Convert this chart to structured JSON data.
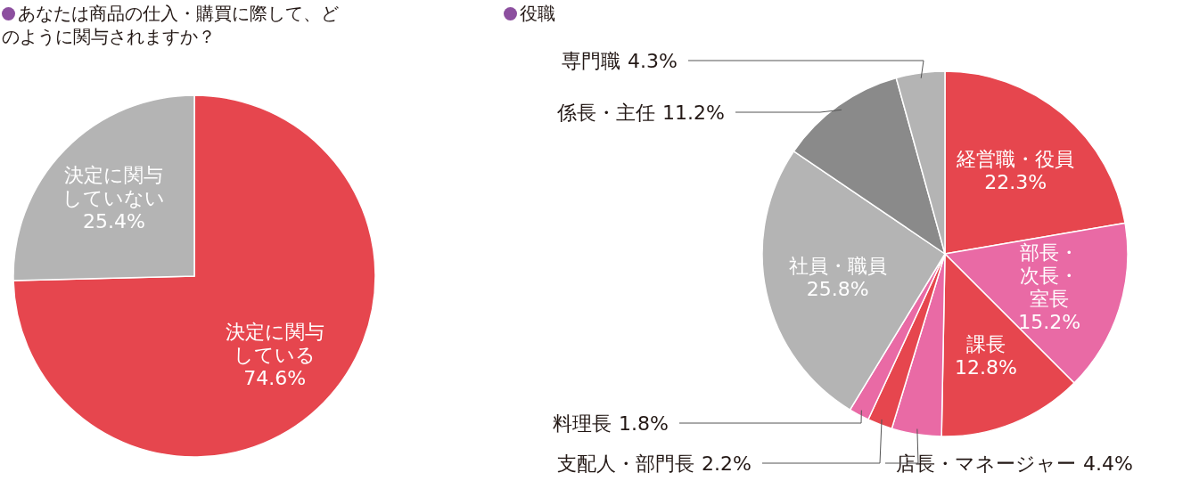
{
  "chart_data": [
    {
      "type": "pie",
      "title": "あなたは商品の仕入・購買に際して、どのように関与されますか？",
      "categories": [
        "決定に関与している",
        "決定に関与していない"
      ],
      "values": [
        74.6,
        25.4
      ],
      "colors": [
        "#e6464e",
        "#b4b4b4"
      ],
      "value_labels": [
        "74.6%",
        "25.4%"
      ]
    },
    {
      "type": "pie",
      "title": "役職",
      "categories": [
        "経営職・役員",
        "部長・次長・室長",
        "課長",
        "店長・マネージャー",
        "支配人・部門長",
        "料理長",
        "社員・職員",
        "係長・主任",
        "専門職"
      ],
      "values": [
        22.3,
        15.2,
        12.8,
        4.4,
        2.2,
        1.8,
        25.8,
        11.2,
        4.3
      ],
      "colors": [
        "#e6464e",
        "#e96aa5",
        "#e6464e",
        "#e96aa5",
        "#e6464e",
        "#e96aa5",
        "#b4b4b4",
        "#8a8a8a",
        "#b4b4b4"
      ],
      "value_labels": [
        "22.3%",
        "15.2%",
        "12.8%",
        "4.4%",
        "2.2%",
        "1.8%",
        "25.8%",
        "11.2%",
        "4.3%"
      ]
    }
  ]
}
